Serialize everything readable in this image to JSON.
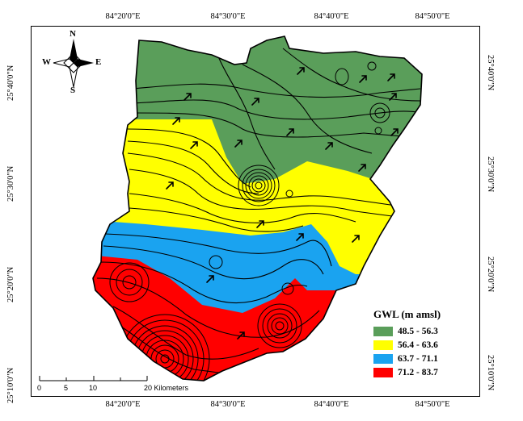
{
  "map": {
    "top_ticks": [
      "84°20'0\"E",
      "84°30'0\"E",
      "84°40'0\"E",
      "84°50'0\"E"
    ],
    "bottom_ticks": [
      "84°20'0\"E",
      "84°30'0\"E",
      "84°40'0\"E",
      "84°50'0\"E"
    ],
    "left_ticks": [
      "25°40'0\"N",
      "25°30'0\"N",
      "25°20'0\"N",
      "25°10'0\"N"
    ],
    "right_ticks": [
      "25°40'0\"N",
      "25°30'0\"N",
      "25°20'0\"N",
      "25°10'0\"N"
    ]
  },
  "compass": {
    "n": "N",
    "s": "S",
    "e": "E",
    "w": "W"
  },
  "scale": {
    "labels": [
      "0",
      "5",
      "10",
      "20 Kilometers"
    ],
    "label_15": ""
  },
  "legend": {
    "title": "GWL (m amsl)",
    "items": [
      {
        "label": "48.5 - 56.3",
        "color": "#5a9e5a"
      },
      {
        "label": "56.4 - 63.6",
        "color": "#ffff00"
      },
      {
        "label": "63.7 - 71.1",
        "color": "#1aa3f0"
      },
      {
        "label": "71.2 - 83.7",
        "color": "#ff0000"
      }
    ]
  }
}
